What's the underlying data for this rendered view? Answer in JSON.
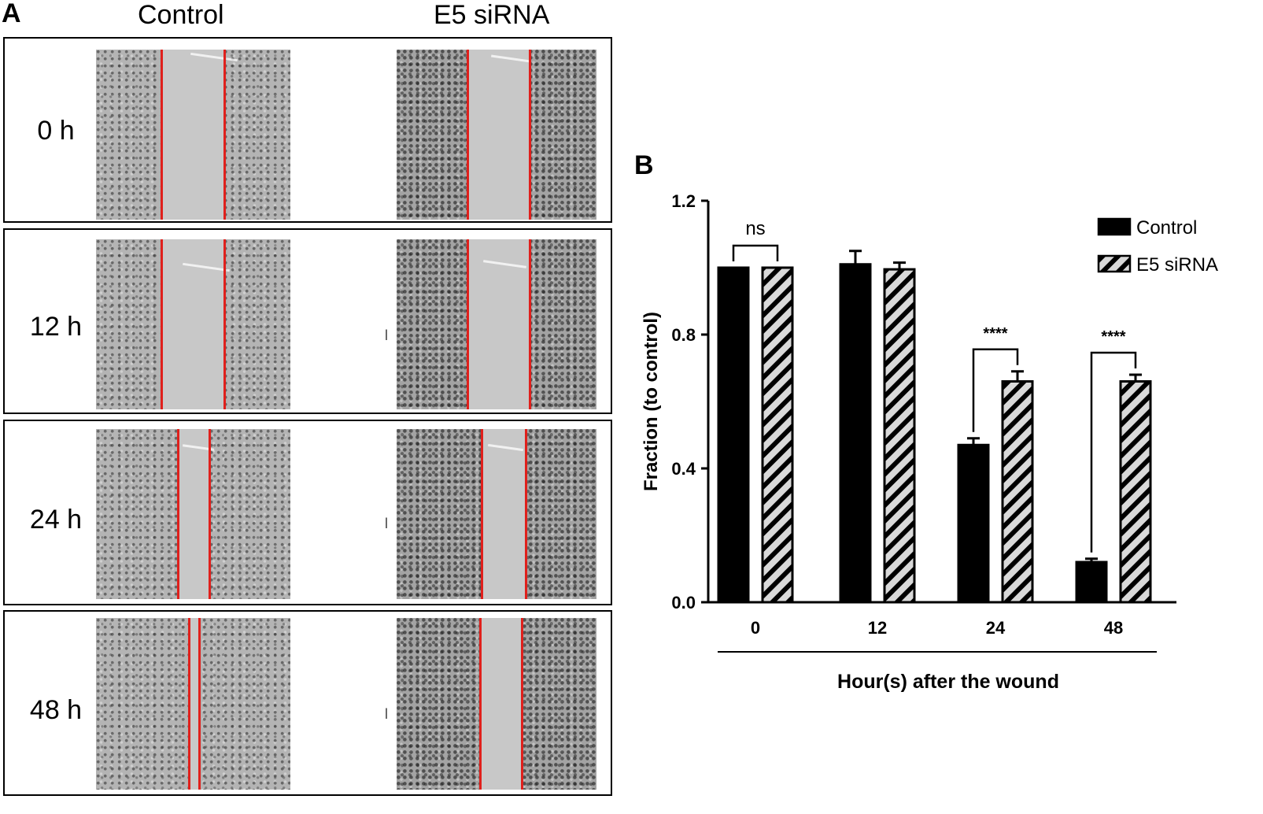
{
  "panels": {
    "a_label": "A",
    "b_label": "B"
  },
  "micrographs": {
    "column_headers": [
      "Control",
      "E5 siRNA"
    ],
    "row_labels": [
      "0 h",
      "12 h",
      "24 h",
      "48 h"
    ],
    "stray_mark": "l"
  },
  "colors": {
    "wound_edge_line": "#e0201c",
    "control_bar": "#000000",
    "e5_bar_fill": "#d9d9d9"
  },
  "chart_data": {
    "type": "bar",
    "categories": [
      "0",
      "12",
      "24",
      "48"
    ],
    "series": [
      {
        "name": "Control",
        "values": [
          1.0,
          1.01,
          0.47,
          0.12
        ],
        "errors": [
          0.0,
          0.04,
          0.02,
          0.01
        ],
        "pattern": "solid"
      },
      {
        "name": "E5 siRNA",
        "values": [
          1.0,
          0.995,
          0.66,
          0.66
        ],
        "errors": [
          0.0,
          0.02,
          0.03,
          0.02
        ],
        "pattern": "hatched"
      }
    ],
    "xlabel": "Hour(s) after the wound",
    "ylabel": "Fraction (to control)",
    "ylim": [
      0,
      1.2
    ],
    "yticks": [
      "0.0",
      "0.4",
      "0.8",
      "1.2"
    ],
    "legend_position": "top-right",
    "significance": [
      "ns",
      "",
      "****",
      "****"
    ]
  }
}
